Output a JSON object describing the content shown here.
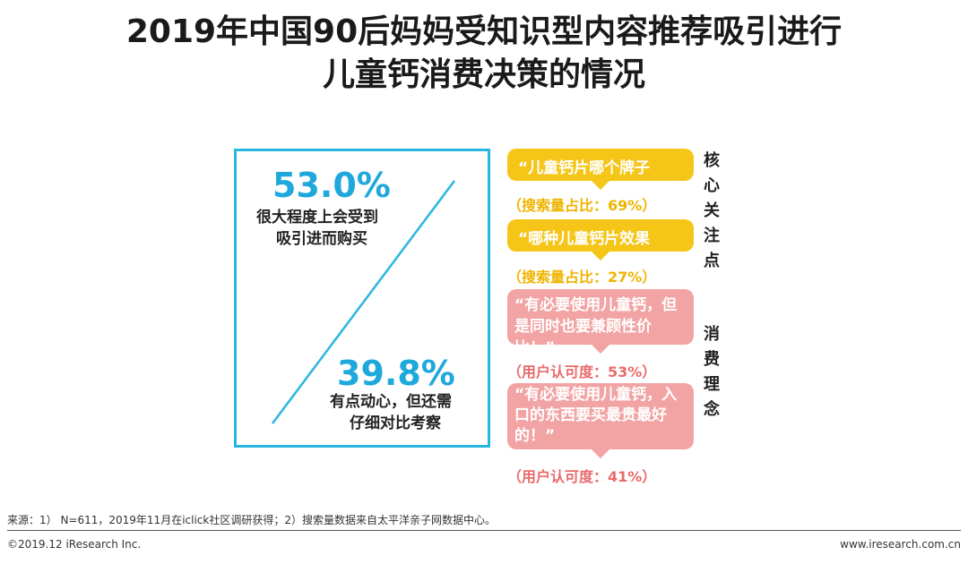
{
  "title": {
    "line1": "2019年中国90后妈妈受知识型内容推荐吸引进行",
    "line2": "儿童钙消费决策的情况"
  },
  "stats": {
    "high": {
      "value": "53.0%",
      "desc_line1": "很大程度上会受到",
      "desc_line2": "吸引进而购买"
    },
    "low": {
      "value": "39.8%",
      "desc_line1": "有点动心，但还需",
      "desc_line2": "仔细对比考察"
    }
  },
  "focus": {
    "label": "核心关注点",
    "items": [
      {
        "quote": "“儿童钙片哪个牌子好？”",
        "metric": "（搜索量占比：69%）"
      },
      {
        "quote": "“哪种儿童钙片效果好？”",
        "metric": "（搜索量占比：27%）"
      }
    ]
  },
  "concept": {
    "label": "消费理念",
    "items": [
      {
        "quote_line1": "“有必要使用儿童钙，但",
        "quote_line2": "是同时也要兼顾性价比！”",
        "metric": "（用户认可度：53%）"
      },
      {
        "quote_line1": "“有必要使用儿童钙，入",
        "quote_line2": "口的东西要买最贵最好",
        "quote_line3": "的！”",
        "metric": "（用户认可度：41%）"
      }
    ]
  },
  "footer": {
    "source": "来源：1） N=611，2019年11月在iclick社区调研获得；2）搜索量数据来自太平洋亲子网数据中心。",
    "copyright": "©2019.12 iResearch Inc.",
    "site": "www.iresearch.com.cn"
  },
  "colors": {
    "accent_blue": "#29b6e0",
    "yellow": "#f5c518",
    "pink": "#f2a3a3"
  }
}
